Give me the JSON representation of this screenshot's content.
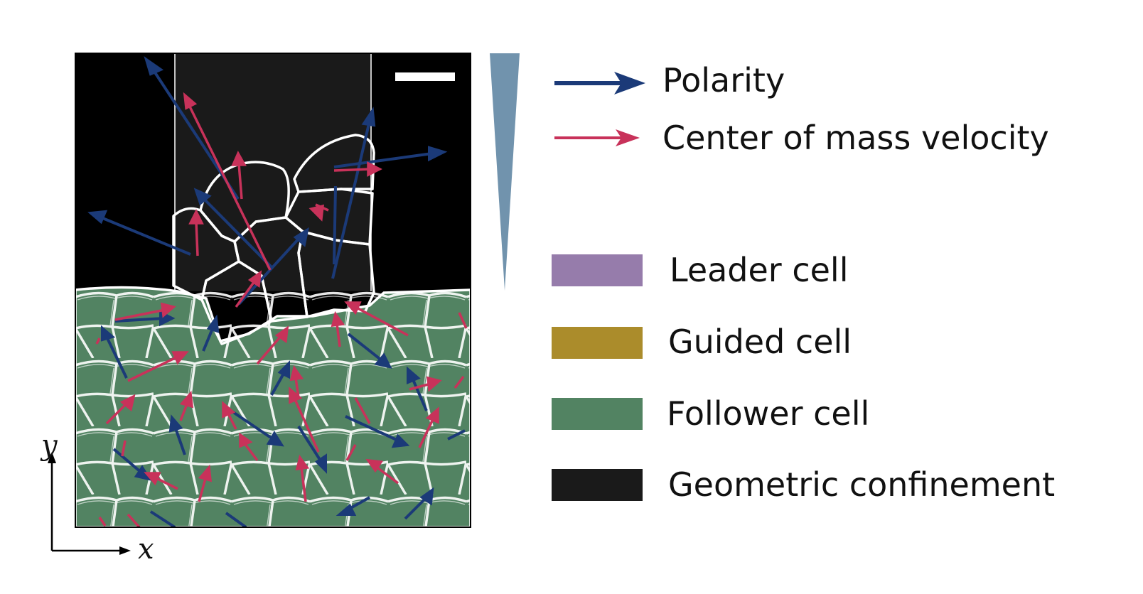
{
  "colors": {
    "polarity": "#1b3a78",
    "velocity": "#c8325a",
    "leader": "#967cab",
    "guided": "#ab8c2b",
    "follower": "#528362",
    "confinement": "#1a1a1a",
    "wedge": "#7193ad"
  },
  "legend": {
    "arrows": [
      {
        "label": "Polarity",
        "color": "#1b3a78"
      },
      {
        "label": "Center of mass velocity",
        "color": "#c8325a"
      }
    ],
    "swatches": [
      {
        "label": "Leader cell",
        "color": "#967cab"
      },
      {
        "label": "Guided cell",
        "color": "#ab8c2b"
      },
      {
        "label": "Follower cell",
        "color": "#528362"
      },
      {
        "label": "Geometric confinement",
        "color": "#1a1a1a"
      }
    ]
  },
  "axes": {
    "x": "x",
    "y": "y"
  }
}
